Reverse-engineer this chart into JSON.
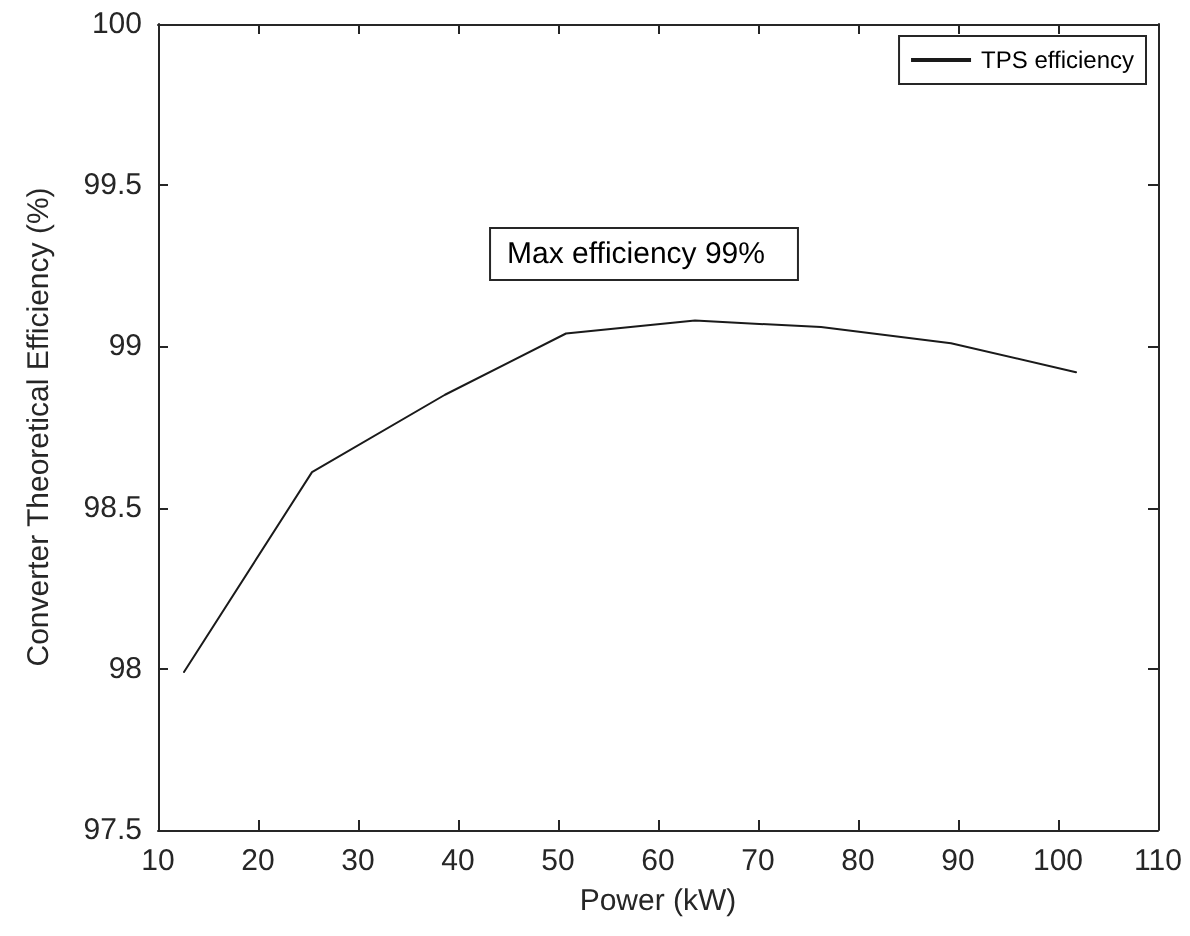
{
  "chart_data": {
    "type": "line",
    "xlabel": "Power (kW)",
    "ylabel": "Converter Theoretical Efficiency (%)",
    "x": [
      12.6,
      25.4,
      38.7,
      50.8,
      63.7,
      76.3,
      89.3,
      101.8
    ],
    "series": [
      {
        "name": "TPS efficiency",
        "color": "#1a1a1a",
        "values": [
          97.99,
          98.61,
          98.85,
          99.04,
          99.08,
          99.06,
          99.01,
          98.92
        ]
      }
    ],
    "annotations": [
      "Max efficiency 99%"
    ],
    "xlim": [
      10,
      110
    ],
    "xticks": [
      10,
      20,
      30,
      40,
      50,
      60,
      70,
      80,
      90,
      100,
      110
    ],
    "ylim": [
      97.5,
      100
    ],
    "yticks": [
      97.5,
      98,
      98.5,
      99,
      99.5,
      100
    ],
    "grid": false,
    "legend": "top right",
    "marker": "none",
    "line_style": "solid"
  }
}
